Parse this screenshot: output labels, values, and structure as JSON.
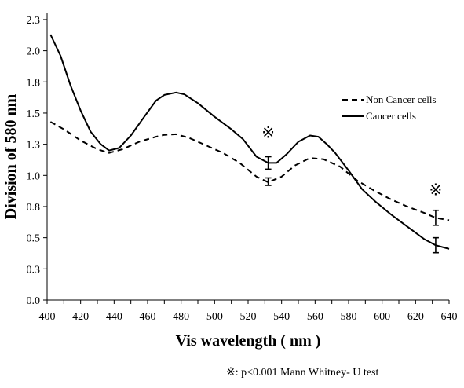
{
  "chart_data": {
    "type": "line",
    "xlabel": "Vis wavelength ( nm )",
    "ylabel": "Division of 580 nm",
    "xlim": [
      400,
      640
    ],
    "ylim": [
      0.0,
      2.3
    ],
    "x_ticks": [
      "400",
      "420",
      "440",
      "460",
      "480",
      "500",
      "520",
      "540",
      "560",
      "580",
      "600",
      "620",
      "640"
    ],
    "y_ticks": [
      "0.0",
      "0.3",
      "0.5",
      "0.8",
      "1.0",
      "1.3",
      "1.5",
      "1.8",
      "2.0",
      "2.3"
    ],
    "y_tick_values": [
      0.0,
      0.25,
      0.5,
      0.75,
      1.0,
      1.25,
      1.5,
      1.75,
      2.0,
      2.25
    ],
    "legend_position": "top-right",
    "grid": false,
    "series": [
      {
        "name": "Non Cancer cells",
        "style": "dashed",
        "color": "#000000",
        "x": [
          402,
          410,
          420,
          430,
          437,
          445,
          455,
          465,
          470,
          477,
          485,
          495,
          505,
          515,
          525,
          532,
          540,
          548,
          557,
          565,
          575,
          585,
          595,
          605,
          615,
          625,
          632,
          640
        ],
        "y": [
          1.43,
          1.37,
          1.28,
          1.21,
          1.18,
          1.21,
          1.27,
          1.31,
          1.325,
          1.33,
          1.3,
          1.24,
          1.18,
          1.1,
          0.99,
          0.945,
          0.99,
          1.08,
          1.14,
          1.13,
          1.07,
          0.96,
          0.88,
          0.81,
          0.75,
          0.7,
          0.66,
          0.64
        ]
      },
      {
        "name": "Cancer cells",
        "style": "solid",
        "color": "#000000",
        "x": [
          402,
          408,
          414,
          420,
          426,
          432,
          437,
          443,
          450,
          458,
          465,
          470,
          477,
          482,
          490,
          500,
          510,
          517,
          525,
          532,
          537,
          543,
          550,
          557,
          562,
          567,
          572,
          580,
          588,
          596,
          605,
          615,
          625,
          632,
          640
        ],
        "y": [
          2.13,
          1.96,
          1.72,
          1.52,
          1.35,
          1.25,
          1.2,
          1.22,
          1.32,
          1.47,
          1.6,
          1.645,
          1.665,
          1.65,
          1.58,
          1.47,
          1.37,
          1.29,
          1.15,
          1.1,
          1.1,
          1.17,
          1.27,
          1.32,
          1.31,
          1.25,
          1.18,
          1.04,
          0.89,
          0.79,
          0.69,
          0.59,
          0.49,
          0.44,
          0.41
        ]
      }
    ],
    "error_bars": [
      {
        "x": 532,
        "low": 1.05,
        "high": 1.15
      },
      {
        "x": 532,
        "low": 0.92,
        "high": 0.98
      },
      {
        "x": 632,
        "low": 0.6,
        "high": 0.72
      },
      {
        "x": 632,
        "low": 0.38,
        "high": 0.5
      }
    ],
    "annotations": [
      {
        "text": "※",
        "x": 532,
        "y": 1.3
      },
      {
        "text": "※",
        "x": 632,
        "y": 0.84
      }
    ]
  },
  "footnote": {
    "symbol": "※",
    "text": ": p<0.001    Mann Whitney- U test"
  }
}
